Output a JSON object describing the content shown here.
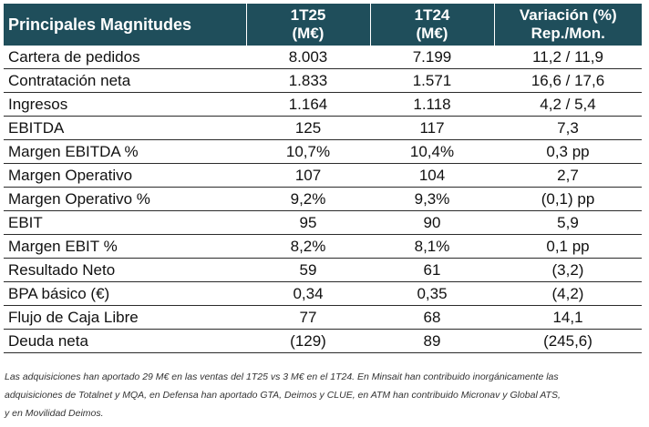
{
  "table": {
    "header": {
      "label": "Principales Magnitudes",
      "col1_line1": "1T25",
      "col1_line2": "(M€)",
      "col2_line1": "1T24",
      "col2_line2": "(M€)",
      "col3_line1": "Variación (%)",
      "col3_line2": "Rep./Mon."
    },
    "rows": [
      {
        "label": "Cartera de pedidos",
        "v1": "8.003",
        "v2": "7.199",
        "v3": "11,2 / 11,9"
      },
      {
        "label": "Contratación neta",
        "v1": "1.833",
        "v2": "1.571",
        "v3": "16,6 / 17,6"
      },
      {
        "label": "Ingresos",
        "v1": "1.164",
        "v2": "1.118",
        "v3": "4,2 / 5,4"
      },
      {
        "label": "EBITDA",
        "v1": "125",
        "v2": "117",
        "v3": "7,3"
      },
      {
        "label": "Margen EBITDA %",
        "v1": "10,7%",
        "v2": "10,4%",
        "v3": "0,3 pp"
      },
      {
        "label": "Margen Operativo",
        "v1": "107",
        "v2": "104",
        "v3": "2,7"
      },
      {
        "label": "Margen Operativo %",
        "v1": "9,2%",
        "v2": "9,3%",
        "v3": "(0,1) pp"
      },
      {
        "label": "EBIT",
        "v1": "95",
        "v2": "90",
        "v3": "5,9"
      },
      {
        "label": "Margen EBIT %",
        "v1": "8,2%",
        "v2": "8,1%",
        "v3": "0,1 pp"
      },
      {
        "label": "Resultado Neto",
        "v1": "59",
        "v2": "61",
        "v3": "(3,2)"
      },
      {
        "label": "BPA básico (€)",
        "v1": "0,34",
        "v2": "0,35",
        "v3": "(4,2)"
      },
      {
        "label": "Flujo de Caja Libre",
        "v1": "77",
        "v2": "68",
        "v3": "14,1"
      },
      {
        "label": "Deuda neta",
        "v1": "(129)",
        "v2": "89",
        "v3": "(245,6)"
      }
    ]
  },
  "footnote": {
    "line1": "Las adquisiciones han aportado 29 M€ en las ventas del 1T25 vs 3 M€ en el 1T24. En Minsait han contribuido inorgánicamente las",
    "line2": "adquisiciones de Totalnet y MQA, en Defensa han aportado GTA, Deimos y CLUE, en ATM han contribuido Micronav y Global ATS,",
    "line3": "y en Movilidad Deimos."
  },
  "colors": {
    "header_bg": "#1f4e5b",
    "header_text": "#ffffff"
  }
}
